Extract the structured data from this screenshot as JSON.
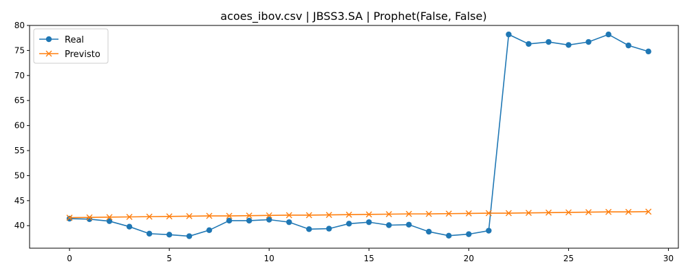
{
  "chart_data": {
    "type": "line",
    "title": "acoes_ibov.csv | JBSS3.SA | Prophet(False, False)",
    "xlabel": "",
    "ylabel": "",
    "xlim": [
      -2,
      30.5
    ],
    "ylim": [
      35.5,
      80
    ],
    "xticks": [
      0,
      5,
      10,
      15,
      20,
      25,
      30
    ],
    "yticks": [
      40,
      45,
      50,
      55,
      60,
      65,
      70,
      75,
      80
    ],
    "grid": false,
    "legend_position": "top-left",
    "x": [
      0,
      1,
      2,
      3,
      4,
      5,
      6,
      7,
      8,
      9,
      10,
      11,
      12,
      13,
      14,
      15,
      16,
      17,
      18,
      19,
      20,
      21,
      22,
      23,
      24,
      25,
      26,
      27,
      28,
      29
    ],
    "series": [
      {
        "name": "Real",
        "color": "#1f77b4",
        "marker": "circle",
        "values": [
          41.4,
          41.3,
          40.9,
          39.8,
          38.4,
          38.2,
          37.9,
          39.1,
          41.0,
          41.0,
          41.2,
          40.7,
          39.3,
          39.4,
          40.4,
          40.7,
          40.1,
          40.2,
          38.8,
          38.0,
          38.3,
          39.0,
          78.2,
          76.3,
          76.7,
          76.1,
          76.7,
          78.2,
          76.0,
          74.8
        ]
      },
      {
        "name": "Previsto",
        "color": "#ff7f0e",
        "marker": "x",
        "values": [
          41.6,
          41.65,
          41.7,
          41.75,
          41.8,
          41.85,
          41.9,
          41.95,
          41.95,
          42.0,
          42.05,
          42.1,
          42.1,
          42.15,
          42.2,
          42.25,
          42.3,
          42.35,
          42.35,
          42.4,
          42.45,
          42.5,
          42.5,
          42.55,
          42.6,
          42.65,
          42.7,
          42.75,
          42.75,
          42.8
        ]
      }
    ]
  }
}
